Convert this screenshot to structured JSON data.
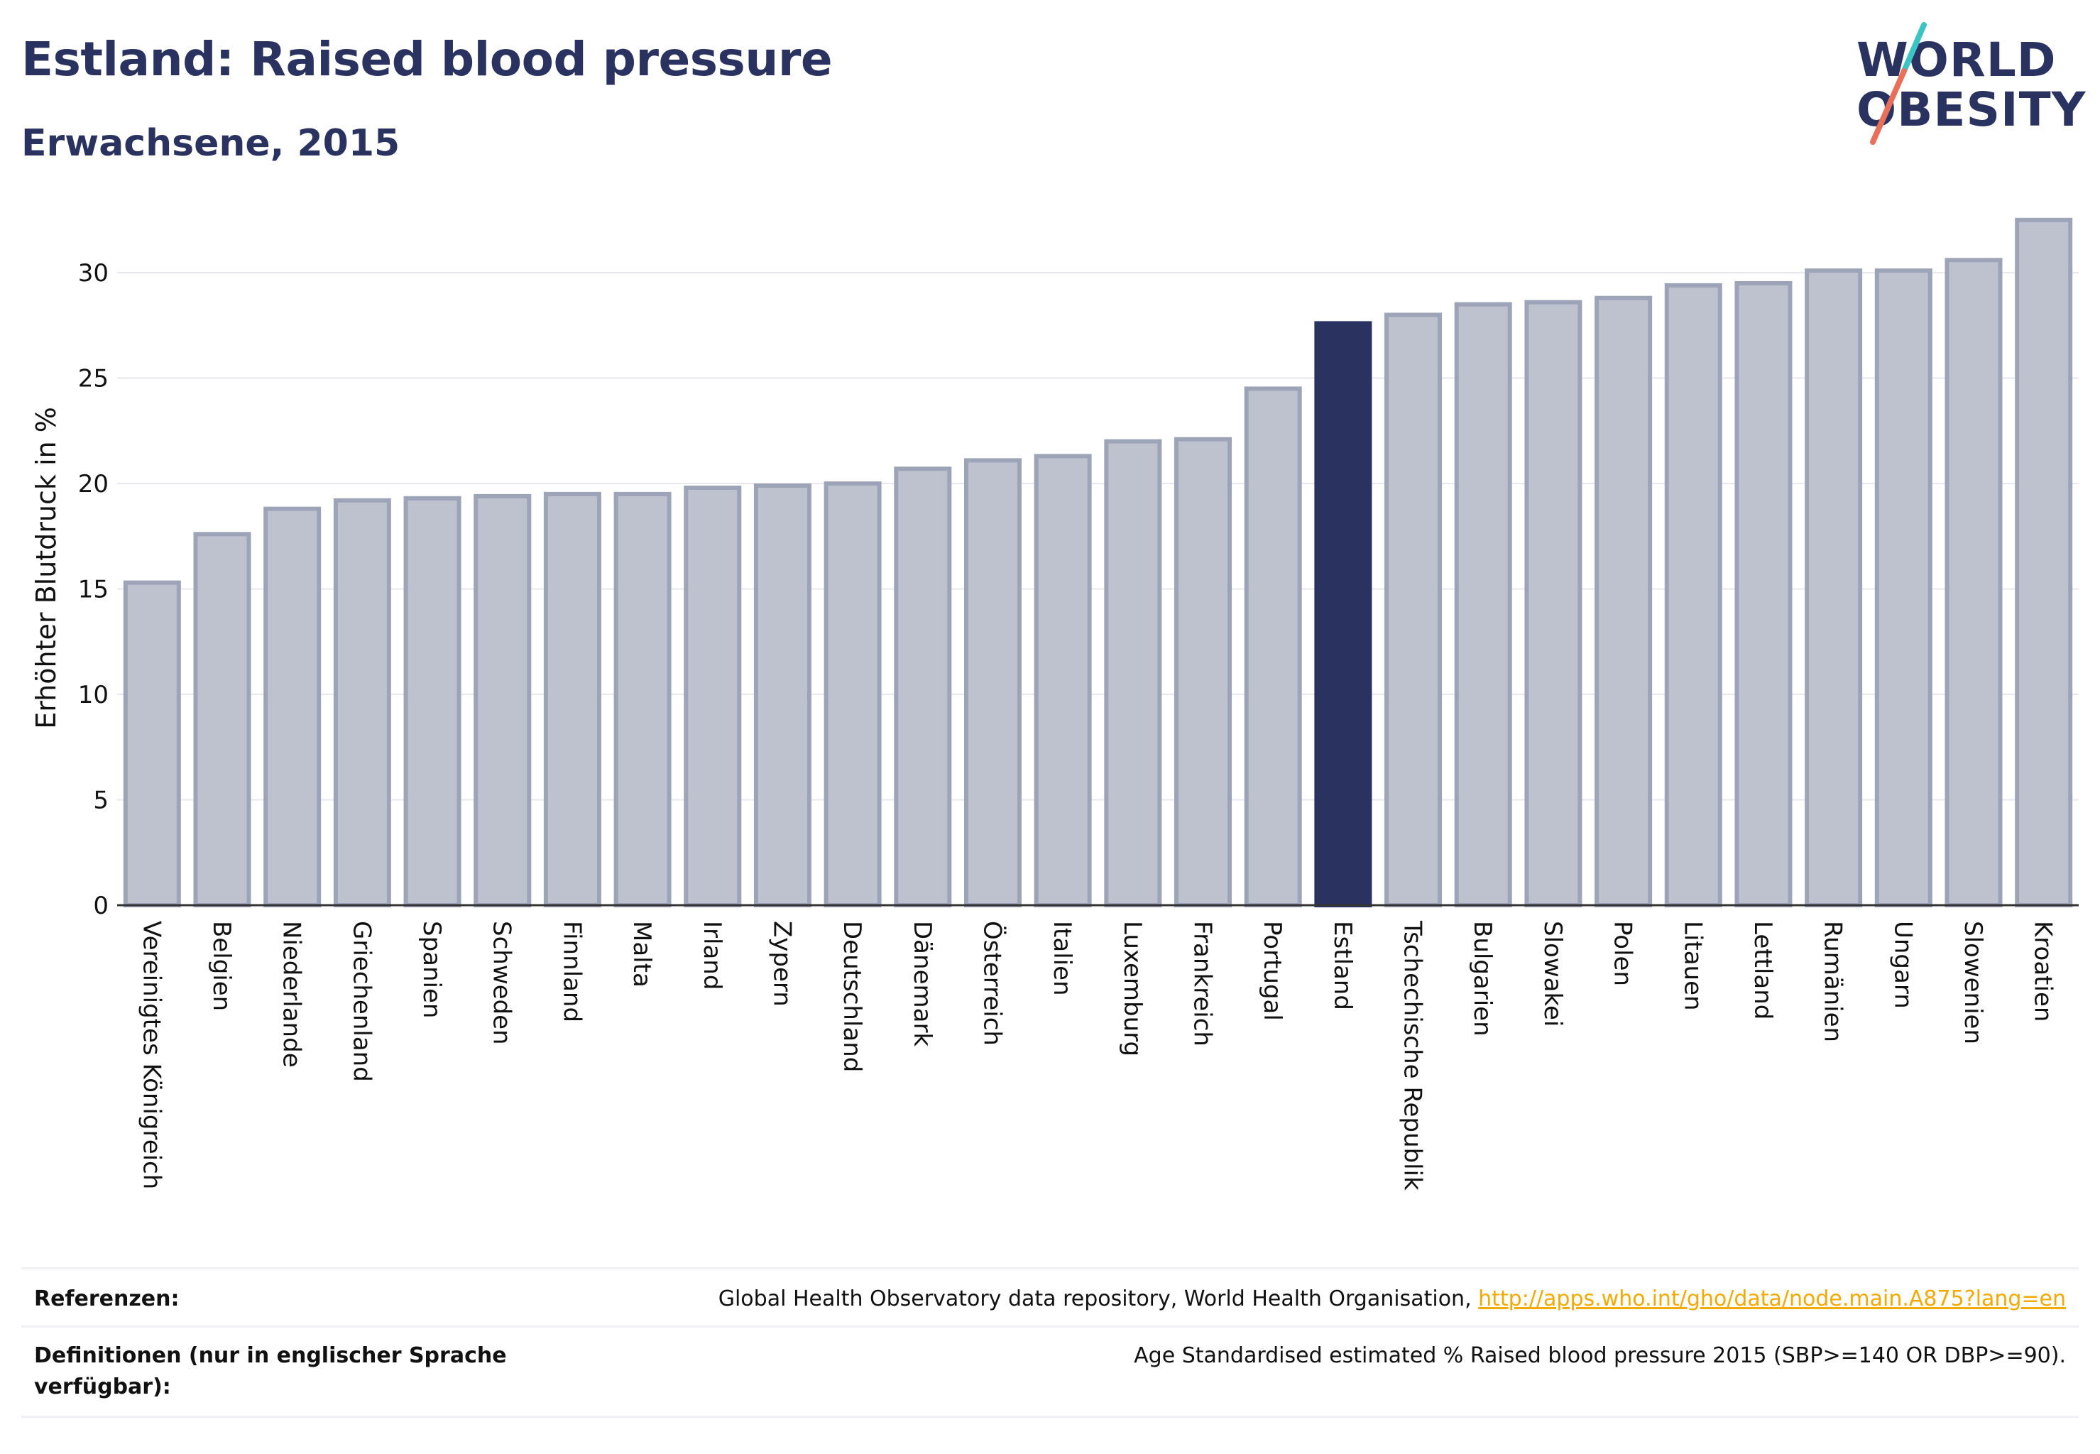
{
  "header": {
    "title": "Estland: Raised blood pressure",
    "subtitle": "Erwachsene, 2015"
  },
  "logo": {
    "line1": "WORLD",
    "line2": "OBESITY",
    "accent_colors": [
      "#3cc4c4",
      "#e8705a"
    ]
  },
  "colors": {
    "highlight": "#2a3360",
    "bar_fill": "#bec2cf",
    "bar_stroke": "#9ea4b8",
    "link": "#f2a900"
  },
  "chart_data": {
    "type": "bar",
    "ylabel": "Erhöhter Blutdruck in %",
    "ylim": [
      0,
      33
    ],
    "yticks": [
      0,
      5,
      10,
      15,
      20,
      25,
      30
    ],
    "grid": true,
    "highlight_category": "Estland",
    "categories": [
      "Vereinigtes Königreich",
      "Belgien",
      "Niederlande",
      "Griechenland",
      "Spanien",
      "Schweden",
      "Finnland",
      "Malta",
      "Irland",
      "Zypern",
      "Deutschland",
      "Dänemark",
      "Österreich",
      "Italien",
      "Luxemburg",
      "Frankreich",
      "Portugal",
      "Estland",
      "Tschechische Republik",
      "Bulgarien",
      "Slowakei",
      "Polen",
      "Litauen",
      "Lettland",
      "Rumänien",
      "Ungarn",
      "Slowenien",
      "Kroatien"
    ],
    "values": [
      15.3,
      17.6,
      18.8,
      19.2,
      19.3,
      19.4,
      19.5,
      19.5,
      19.8,
      19.9,
      20.0,
      20.7,
      21.1,
      21.3,
      22.0,
      22.1,
      24.5,
      27.6,
      28.0,
      28.5,
      28.6,
      28.8,
      29.4,
      29.5,
      30.1,
      30.1,
      30.6,
      32.5
    ]
  },
  "footer": {
    "ref_label": "Referenzen:",
    "ref_text": "Global Health Observatory data repository, World Health Organisation, ",
    "ref_link": "http://apps.who.int/gho/data/node.main.A875?lang=en",
    "def_label": "Definitionen (nur in englischer Sprache verfügbar):",
    "def_text": "Age Standardised estimated % Raised blood pressure 2015 (SBP>=140 OR DBP>=90)."
  }
}
